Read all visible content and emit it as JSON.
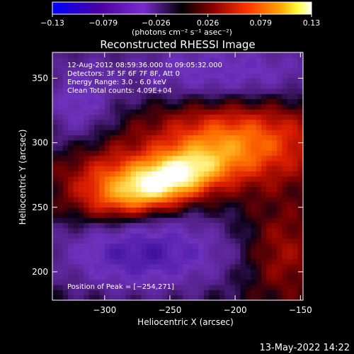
{
  "chart_data": {
    "type": "heatmap",
    "title": "Reconstructed RHESSI Image",
    "xlabel": "Heliocentric X (arcsec)",
    "ylabel": "Heliocentric Y (arcsec)",
    "xlim": [
      -340,
      -148
    ],
    "ylim": [
      178,
      370
    ],
    "xticks": [
      -300,
      -250,
      -200,
      -150
    ],
    "yticks": [
      200,
      250,
      300,
      350
    ],
    "xtick_labels": [
      "−300",
      "−250",
      "−200",
      "−150"
    ],
    "ytick_labels": [
      "200",
      "250",
      "300",
      "350"
    ],
    "colorbar": {
      "range": [
        -0.13,
        0.13
      ],
      "tick_values": [
        -0.13,
        -0.079,
        -0.026,
        0.026,
        0.079,
        0.13
      ],
      "tick_labels": [
        "−0.13",
        "−0.079",
        "−0.026",
        "0.026",
        "0.079",
        "0.13"
      ],
      "unit_label": "(photons cm⁻² s⁻¹ asec⁻²)",
      "colormap": [
        "#0000ff",
        "#4b0082",
        "#8a2be2",
        "#000000",
        "#8b0000",
        "#ff4500",
        "#ffa500",
        "#ffff00",
        "#ffffff"
      ]
    },
    "annotations": [
      "12‑Aug‑2012 08:59:36.000 to 09:05:32.000",
      "Detectors: 3F 5F 6F 7F 8F, Att 0",
      "Energy Range: 3.0 ‑ 6.0 keV",
      "Clean     Total counts: 4.09E+04"
    ],
    "peak_label": "Position of Peak = [−254,271]",
    "peak": [
      -254,
      271
    ],
    "footer_date": "13‑May‑2022 14:22"
  }
}
